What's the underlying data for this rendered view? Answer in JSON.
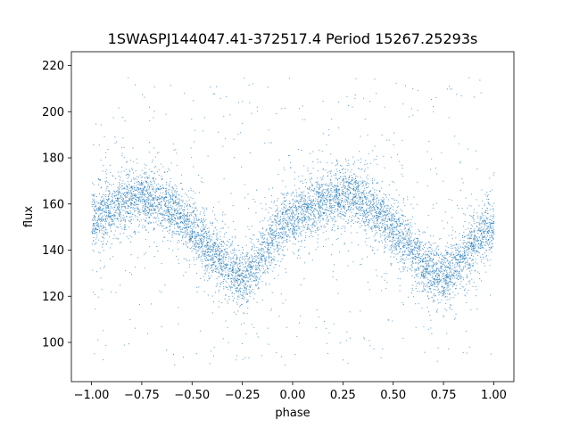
{
  "chart_data": {
    "type": "scatter",
    "title": "1SWASPJ144047.41-372517.4 Period 15267.25293s",
    "xlabel": "phase",
    "ylabel": "flux",
    "xlim": [
      -1.1,
      1.1
    ],
    "ylim": [
      83,
      226
    ],
    "xticks": [
      -1.0,
      -0.75,
      -0.5,
      -0.25,
      0.0,
      0.25,
      0.5,
      0.75,
      1.0
    ],
    "xtick_labels": [
      "−1.00",
      "−0.75",
      "−0.50",
      "−0.25",
      "0.00",
      "0.25",
      "0.50",
      "0.75",
      "1.00"
    ],
    "yticks": [
      100,
      120,
      140,
      160,
      180,
      200,
      220
    ],
    "ytick_labels": [
      "100",
      "120",
      "140",
      "160",
      "180",
      "200",
      "220"
    ],
    "grid": false,
    "point_color": "#1f77b4",
    "x": [
      -1.0,
      -0.95,
      -0.9,
      -0.85,
      -0.8,
      -0.75,
      -0.7,
      -0.65,
      -0.6,
      -0.55,
      -0.5,
      -0.45,
      -0.4,
      -0.35,
      -0.3,
      -0.25,
      -0.22,
      -0.2,
      -0.15,
      -0.1,
      -0.05,
      0.0,
      0.05,
      0.1,
      0.15,
      0.2,
      0.25,
      0.3,
      0.35,
      0.4,
      0.45,
      0.5,
      0.55,
      0.6,
      0.65,
      0.7,
      0.75,
      0.78,
      0.8,
      0.85,
      0.9,
      0.95,
      1.0
    ],
    "y": [
      153,
      156,
      159,
      161,
      162,
      163,
      162,
      161,
      158,
      154,
      149,
      144,
      139,
      135,
      131,
      129,
      130,
      132,
      139,
      146,
      151,
      154,
      157,
      160,
      162,
      163,
      164,
      163,
      161,
      158,
      154,
      149,
      144,
      139,
      134,
      130,
      129,
      130,
      132,
      137,
      143,
      148,
      152
    ],
    "scatter_sigma": 6,
    "outlier_range": [
      90,
      215
    ]
  }
}
